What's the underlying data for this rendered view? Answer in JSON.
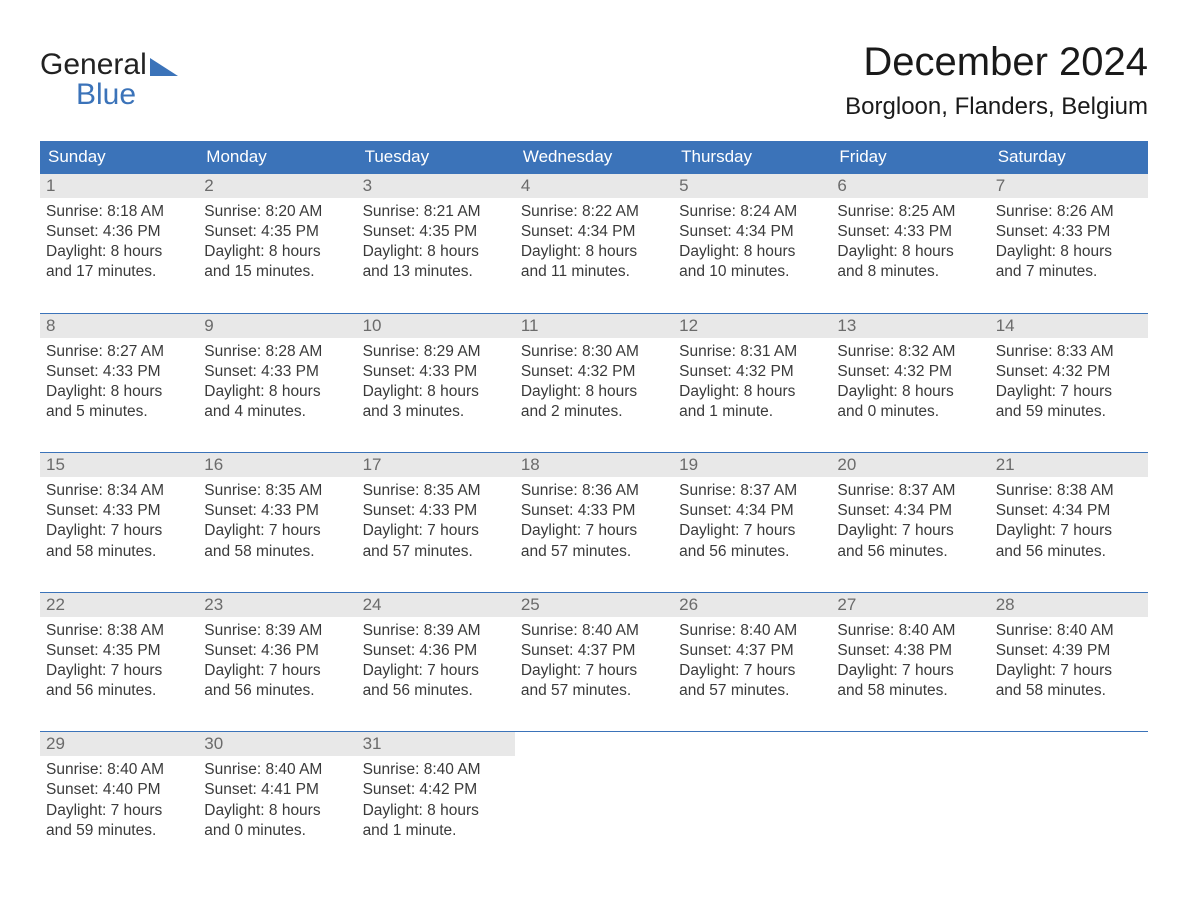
{
  "brand": {
    "word1": "General",
    "word2": "Blue"
  },
  "title": "December 2024",
  "location": "Borgloon, Flanders, Belgium",
  "colors": {
    "header_bg": "#3b73b9",
    "header_text": "#ffffff",
    "daynum_bg": "#e8e8e8",
    "daynum_text": "#6b6b6b",
    "body_text": "#3a3a3a",
    "logo_blue": "#3b73b9",
    "page_bg": "#ffffff"
  },
  "typography": {
    "title_fontsize": 40,
    "location_fontsize": 24,
    "weekday_fontsize": 17,
    "daynum_fontsize": 17,
    "body_fontsize": 15.5
  },
  "weekdays": [
    "Sunday",
    "Monday",
    "Tuesday",
    "Wednesday",
    "Thursday",
    "Friday",
    "Saturday"
  ],
  "weeks": [
    [
      {
        "num": "1",
        "sunrise": "Sunrise: 8:18 AM",
        "sunset": "Sunset: 4:36 PM",
        "daylight": "Daylight: 8 hours and 17 minutes."
      },
      {
        "num": "2",
        "sunrise": "Sunrise: 8:20 AM",
        "sunset": "Sunset: 4:35 PM",
        "daylight": "Daylight: 8 hours and 15 minutes."
      },
      {
        "num": "3",
        "sunrise": "Sunrise: 8:21 AM",
        "sunset": "Sunset: 4:35 PM",
        "daylight": "Daylight: 8 hours and 13 minutes."
      },
      {
        "num": "4",
        "sunrise": "Sunrise: 8:22 AM",
        "sunset": "Sunset: 4:34 PM",
        "daylight": "Daylight: 8 hours and 11 minutes."
      },
      {
        "num": "5",
        "sunrise": "Sunrise: 8:24 AM",
        "sunset": "Sunset: 4:34 PM",
        "daylight": "Daylight: 8 hours and 10 minutes."
      },
      {
        "num": "6",
        "sunrise": "Sunrise: 8:25 AM",
        "sunset": "Sunset: 4:33 PM",
        "daylight": "Daylight: 8 hours and 8 minutes."
      },
      {
        "num": "7",
        "sunrise": "Sunrise: 8:26 AM",
        "sunset": "Sunset: 4:33 PM",
        "daylight": "Daylight: 8 hours and 7 minutes."
      }
    ],
    [
      {
        "num": "8",
        "sunrise": "Sunrise: 8:27 AM",
        "sunset": "Sunset: 4:33 PM",
        "daylight": "Daylight: 8 hours and 5 minutes."
      },
      {
        "num": "9",
        "sunrise": "Sunrise: 8:28 AM",
        "sunset": "Sunset: 4:33 PM",
        "daylight": "Daylight: 8 hours and 4 minutes."
      },
      {
        "num": "10",
        "sunrise": "Sunrise: 8:29 AM",
        "sunset": "Sunset: 4:33 PM",
        "daylight": "Daylight: 8 hours and 3 minutes."
      },
      {
        "num": "11",
        "sunrise": "Sunrise: 8:30 AM",
        "sunset": "Sunset: 4:32 PM",
        "daylight": "Daylight: 8 hours and 2 minutes."
      },
      {
        "num": "12",
        "sunrise": "Sunrise: 8:31 AM",
        "sunset": "Sunset: 4:32 PM",
        "daylight": "Daylight: 8 hours and 1 minute."
      },
      {
        "num": "13",
        "sunrise": "Sunrise: 8:32 AM",
        "sunset": "Sunset: 4:32 PM",
        "daylight": "Daylight: 8 hours and 0 minutes."
      },
      {
        "num": "14",
        "sunrise": "Sunrise: 8:33 AM",
        "sunset": "Sunset: 4:32 PM",
        "daylight": "Daylight: 7 hours and 59 minutes."
      }
    ],
    [
      {
        "num": "15",
        "sunrise": "Sunrise: 8:34 AM",
        "sunset": "Sunset: 4:33 PM",
        "daylight": "Daylight: 7 hours and 58 minutes."
      },
      {
        "num": "16",
        "sunrise": "Sunrise: 8:35 AM",
        "sunset": "Sunset: 4:33 PM",
        "daylight": "Daylight: 7 hours and 58 minutes."
      },
      {
        "num": "17",
        "sunrise": "Sunrise: 8:35 AM",
        "sunset": "Sunset: 4:33 PM",
        "daylight": "Daylight: 7 hours and 57 minutes."
      },
      {
        "num": "18",
        "sunrise": "Sunrise: 8:36 AM",
        "sunset": "Sunset: 4:33 PM",
        "daylight": "Daylight: 7 hours and 57 minutes."
      },
      {
        "num": "19",
        "sunrise": "Sunrise: 8:37 AM",
        "sunset": "Sunset: 4:34 PM",
        "daylight": "Daylight: 7 hours and 56 minutes."
      },
      {
        "num": "20",
        "sunrise": "Sunrise: 8:37 AM",
        "sunset": "Sunset: 4:34 PM",
        "daylight": "Daylight: 7 hours and 56 minutes."
      },
      {
        "num": "21",
        "sunrise": "Sunrise: 8:38 AM",
        "sunset": "Sunset: 4:34 PM",
        "daylight": "Daylight: 7 hours and 56 minutes."
      }
    ],
    [
      {
        "num": "22",
        "sunrise": "Sunrise: 8:38 AM",
        "sunset": "Sunset: 4:35 PM",
        "daylight": "Daylight: 7 hours and 56 minutes."
      },
      {
        "num": "23",
        "sunrise": "Sunrise: 8:39 AM",
        "sunset": "Sunset: 4:36 PM",
        "daylight": "Daylight: 7 hours and 56 minutes."
      },
      {
        "num": "24",
        "sunrise": "Sunrise: 8:39 AM",
        "sunset": "Sunset: 4:36 PM",
        "daylight": "Daylight: 7 hours and 56 minutes."
      },
      {
        "num": "25",
        "sunrise": "Sunrise: 8:40 AM",
        "sunset": "Sunset: 4:37 PM",
        "daylight": "Daylight: 7 hours and 57 minutes."
      },
      {
        "num": "26",
        "sunrise": "Sunrise: 8:40 AM",
        "sunset": "Sunset: 4:37 PM",
        "daylight": "Daylight: 7 hours and 57 minutes."
      },
      {
        "num": "27",
        "sunrise": "Sunrise: 8:40 AM",
        "sunset": "Sunset: 4:38 PM",
        "daylight": "Daylight: 7 hours and 58 minutes."
      },
      {
        "num": "28",
        "sunrise": "Sunrise: 8:40 AM",
        "sunset": "Sunset: 4:39 PM",
        "daylight": "Daylight: 7 hours and 58 minutes."
      }
    ],
    [
      {
        "num": "29",
        "sunrise": "Sunrise: 8:40 AM",
        "sunset": "Sunset: 4:40 PM",
        "daylight": "Daylight: 7 hours and 59 minutes."
      },
      {
        "num": "30",
        "sunrise": "Sunrise: 8:40 AM",
        "sunset": "Sunset: 4:41 PM",
        "daylight": "Daylight: 8 hours and 0 minutes."
      },
      {
        "num": "31",
        "sunrise": "Sunrise: 8:40 AM",
        "sunset": "Sunset: 4:42 PM",
        "daylight": "Daylight: 8 hours and 1 minute."
      },
      null,
      null,
      null,
      null
    ]
  ]
}
